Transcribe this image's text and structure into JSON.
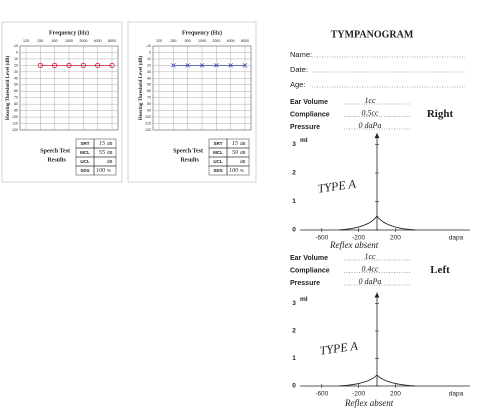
{
  "audiograms": [
    {
      "title": "Frequency (Hz)",
      "y_label": "Hearing Threshold Level (dB)",
      "frequencies": [
        "125",
        "250",
        "500",
        "1000",
        "2000",
        "4000",
        "8000"
      ],
      "levels": [
        -10,
        0,
        10,
        20,
        30,
        40,
        50,
        60,
        70,
        80,
        90,
        100,
        110,
        120
      ],
      "thresholds": [
        null,
        20,
        20,
        20,
        20,
        20,
        20
      ],
      "ink": "#d0243a",
      "speech_label": "Speech Test",
      "results_label": "Results",
      "speech_rows": [
        {
          "name": "SRT",
          "value": "15",
          "unit": "dB"
        },
        {
          "name": "MCL",
          "value": "55",
          "unit": "dB"
        },
        {
          "name": "UCL",
          "unit": "dB"
        },
        {
          "name": "SDS",
          "value": "100",
          "unit": "%"
        }
      ]
    },
    {
      "title": "Frequency (Hz)",
      "y_label": "Hearing Threshold Level (dB)",
      "frequencies": [
        "125",
        "250",
        "500",
        "1000",
        "2000",
        "4000",
        "8000"
      ],
      "levels": [
        -10,
        0,
        10,
        20,
        30,
        40,
        50,
        60,
        70,
        80,
        90,
        100,
        110,
        120
      ],
      "thresholds": [
        null,
        20,
        20,
        20,
        20,
        20,
        20
      ],
      "ink": "#3b46b8",
      "speech_label": "Speech Test",
      "results_label": "Results",
      "speech_rows": [
        {
          "name": "SRT",
          "value": "15",
          "unit": "dB"
        },
        {
          "name": "MCL",
          "value": "50",
          "unit": "dB"
        },
        {
          "name": "UCL",
          "unit": "dB"
        },
        {
          "name": "SDS",
          "value": "100",
          "unit": "%"
        }
      ]
    }
  ],
  "tympanogram": {
    "title": "TYMPANOGRAM",
    "fields": [
      "Name:",
      "Date:",
      "Age:"
    ],
    "sections": [
      {
        "ear": "Right",
        "ink": "#c0185a",
        "rows": [
          {
            "label": "Ear Volume",
            "value": "1cc"
          },
          {
            "label": "Compliance",
            "value": "0.5cc"
          },
          {
            "label": "Pressure",
            "value": "0 daPa"
          }
        ],
        "y_unit": "ml",
        "y_ticks": [
          0,
          1,
          2,
          3
        ],
        "x_ticks": [
          -600,
          -200,
          200
        ],
        "x_unit": "dapa",
        "type_note": "TYPE A",
        "reflex_note": "Reflex absent"
      },
      {
        "ear": "Left",
        "ink": "#3b46b8",
        "rows": [
          {
            "label": "Ear Volume",
            "value": "1cc"
          },
          {
            "label": "Compliance",
            "value": "0.4cc"
          },
          {
            "label": "Pressure",
            "value": "0 daPa"
          }
        ],
        "y_unit": "ml",
        "y_ticks": [
          0,
          1,
          2,
          3
        ],
        "x_ticks": [
          -600,
          -200,
          200
        ],
        "x_unit": "dapa",
        "type_note": "TYPE A",
        "reflex_note": "Reflex absent"
      }
    ]
  }
}
